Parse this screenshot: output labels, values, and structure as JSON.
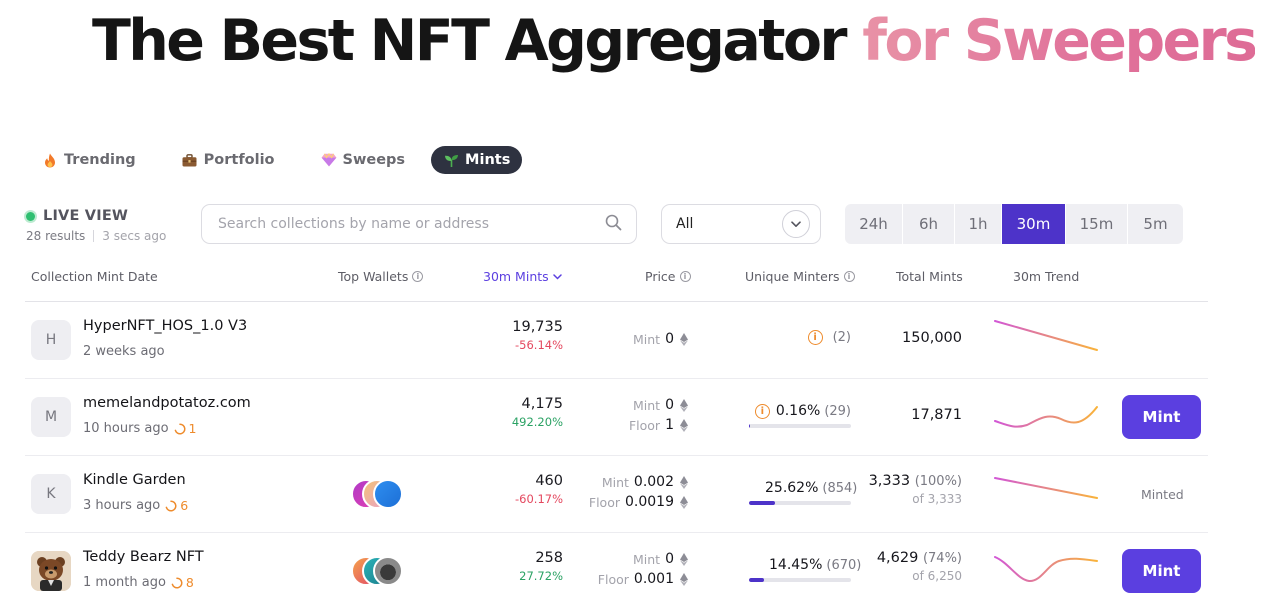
{
  "hero": {
    "title_main": "The Best NFT Aggregator",
    "title_accent": "for Sweepers"
  },
  "tabs": [
    {
      "label": "Trending",
      "icon": "fire-icon",
      "active": false
    },
    {
      "label": "Portfolio",
      "icon": "briefcase-icon",
      "active": false
    },
    {
      "label": "Sweeps",
      "icon": "gem-icon",
      "active": false
    },
    {
      "label": "Mints",
      "icon": "seedling-icon",
      "active": true
    }
  ],
  "live_view": {
    "label": "LIVE VIEW",
    "results": "28 results",
    "updated": "3 secs ago",
    "status_color": "#2fbf71"
  },
  "search": {
    "placeholder": "Search collections by name or address",
    "value": ""
  },
  "filter": {
    "selected": "All"
  },
  "periods": [
    {
      "label": "24h",
      "active": false
    },
    {
      "label": "6h",
      "active": false
    },
    {
      "label": "1h",
      "active": false
    },
    {
      "label": "30m",
      "active": true
    },
    {
      "label": "15m",
      "active": false
    },
    {
      "label": "5m",
      "active": false
    }
  ],
  "columns": {
    "collection": "Collection Mint Date",
    "top_wallets": "Top Wallets",
    "mints": "30m Mints",
    "price": "Price",
    "unique_minters": "Unique Minters",
    "total_mints": "Total Mints",
    "trend": "30m Trend"
  },
  "rows": [
    {
      "avatar_letter": "H",
      "name": "HyperNFT_HOS_1.0 V3",
      "date": "2 weeks ago",
      "pending": "",
      "mints": "19,735",
      "mints_change": "-56.14%",
      "mint_label": "Mint",
      "mint_price": "0",
      "floor_label": "",
      "floor_price": "",
      "um_pct": "",
      "um_count": "(2)",
      "um_fill": 0,
      "total": "150,000",
      "total_pct": "",
      "total_of": "",
      "trend": "down",
      "action": ""
    },
    {
      "avatar_letter": "M",
      "name": "memelandpotatoz.com",
      "date": "10 hours ago",
      "pending": "1",
      "mints": "4,175",
      "mints_change": "492.20%",
      "mint_label": "Mint",
      "mint_price": "0",
      "floor_label": "Floor",
      "floor_price": "1",
      "um_pct": "0.16%",
      "um_count": "(29)",
      "um_fill": 0.0016,
      "total": "17,871",
      "total_pct": "",
      "total_of": "",
      "trend": "wave",
      "action": "Mint"
    },
    {
      "avatar_letter": "K",
      "name": "Kindle Garden",
      "date": "3 hours ago",
      "pending": "6",
      "mints": "460",
      "mints_change": "-60.17%",
      "mint_label": "Mint",
      "mint_price": "0.002",
      "floor_label": "Floor",
      "floor_price": "0.0019",
      "um_pct": "25.62%",
      "um_count": "(854)",
      "um_fill": 0.2562,
      "total": "3,333",
      "total_pct": "(100%)",
      "total_of": "of 3,333",
      "trend": "down",
      "action": "Minted"
    },
    {
      "avatar_letter": "",
      "name": "Teddy Bearz NFT",
      "date": "1 month ago",
      "pending": "8",
      "mints": "258",
      "mints_change": "27.72%",
      "mint_label": "Mint",
      "mint_price": "0",
      "floor_label": "Floor",
      "floor_price": "0.001",
      "um_pct": "14.45%",
      "um_count": "(670)",
      "um_fill": 0.1445,
      "total": "4,629",
      "total_pct": "(74%)",
      "total_of": "of 6,250",
      "trend": "dip",
      "action": "Mint"
    }
  ],
  "colors": {
    "accent": "#4d33c9",
    "mint_button": "#5b3fe0",
    "negative": "#e4485f",
    "positive": "#2ba264",
    "warning": "#ee8b2c"
  }
}
